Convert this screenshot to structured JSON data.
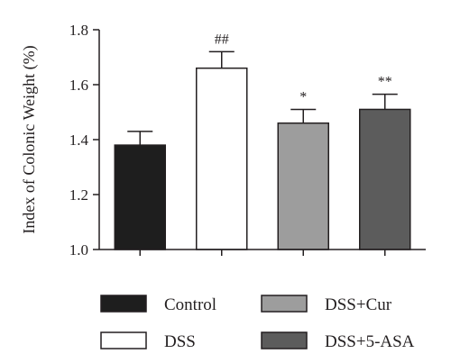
{
  "chart_data": {
    "type": "bar",
    "title": "",
    "xlabel": "",
    "ylabel": "Index of Colonic Weight (%)",
    "ylim": [
      1.0,
      1.8
    ],
    "yticks": [
      "1.0",
      "1.2",
      "1.4",
      "1.6",
      "1.8"
    ],
    "ytick_values": [
      1.0,
      1.2,
      1.4,
      1.6,
      1.8
    ],
    "grid": false,
    "legend_position": "bottom",
    "categories": [
      "Control",
      "DSS",
      "DSS+Cur",
      "DSS+5-ASA"
    ],
    "values": [
      1.38,
      1.66,
      1.46,
      1.51
    ],
    "errors": [
      0.05,
      0.06,
      0.05,
      0.055
    ],
    "colors": [
      "#1e1e1e",
      "#ffffff",
      "#9d9d9d",
      "#5c5c5c"
    ],
    "annotations": [
      "",
      "##",
      "*",
      "**"
    ]
  }
}
